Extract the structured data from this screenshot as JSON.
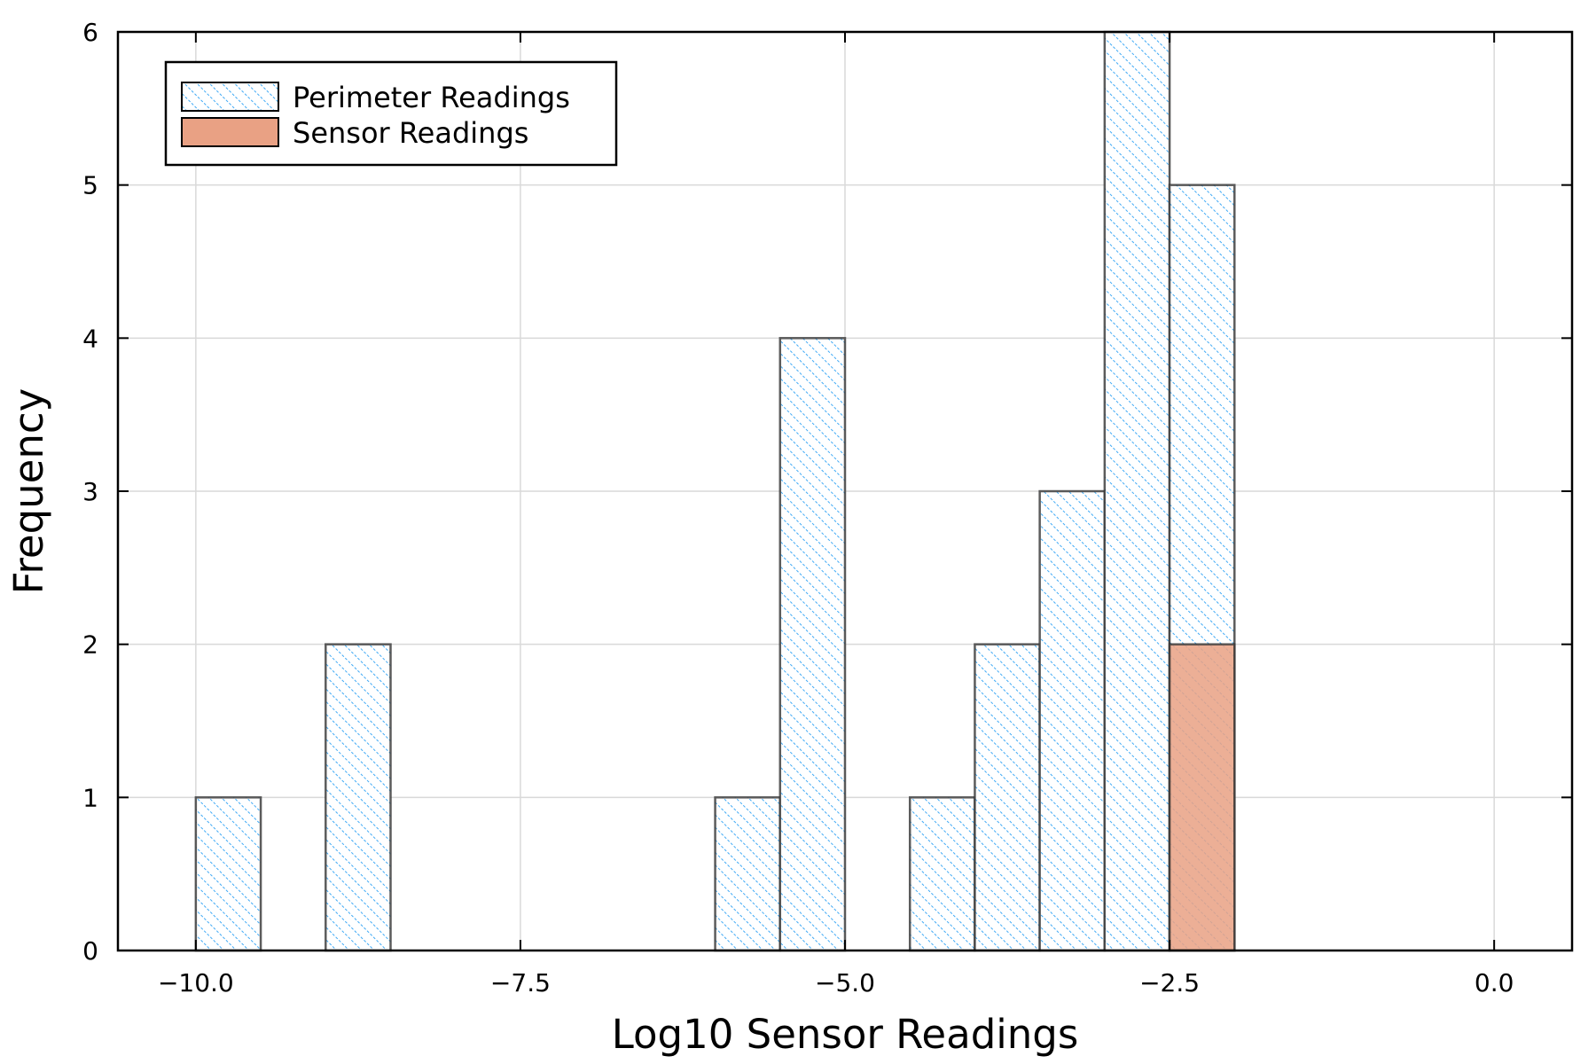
{
  "colors": {
    "perimeter_hatch": "#3fa9f5",
    "sensor_fill": "#e9a184",
    "bar_edge": "#333333",
    "grid": "#d9d9d9"
  },
  "chart_data": {
    "type": "bar",
    "title": "",
    "xlabel": "Log10 Sensor Readings",
    "ylabel": "Frequency",
    "xlim": [
      -10.6,
      0.6
    ],
    "ylim": [
      0,
      6
    ],
    "xticks": [
      -10.0,
      -7.5,
      -5.0,
      -2.5,
      0.0
    ],
    "xtick_labels": [
      "−10.0",
      "−7.5",
      "−5.0",
      "−2.5",
      "0.0"
    ],
    "yticks": [
      0,
      1,
      2,
      3,
      4,
      5,
      6
    ],
    "ytick_labels": [
      "0",
      "1",
      "2",
      "3",
      "4",
      "5",
      "6"
    ],
    "grid": true,
    "legend_position": "top-left",
    "bin_width": 0.5,
    "series": [
      {
        "name": "Perimeter Readings",
        "style": "hatched",
        "bins": [
          {
            "x0": -10.0,
            "x1": -9.5,
            "count": 1
          },
          {
            "x0": -9.0,
            "x1": -8.5,
            "count": 2
          },
          {
            "x0": -6.0,
            "x1": -5.5,
            "count": 1
          },
          {
            "x0": -5.5,
            "x1": -5.0,
            "count": 4
          },
          {
            "x0": -4.5,
            "x1": -4.0,
            "count": 1
          },
          {
            "x0": -4.0,
            "x1": -3.5,
            "count": 2
          },
          {
            "x0": -3.5,
            "x1": -3.0,
            "count": 3
          },
          {
            "x0": -3.0,
            "x1": -2.5,
            "count": 6
          },
          {
            "x0": -2.5,
            "x1": -2.0,
            "count": 5
          }
        ]
      },
      {
        "name": "Sensor Readings",
        "style": "solid",
        "bins": [
          {
            "x0": -2.5,
            "x1": -2.0,
            "count": 2
          }
        ]
      }
    ]
  }
}
